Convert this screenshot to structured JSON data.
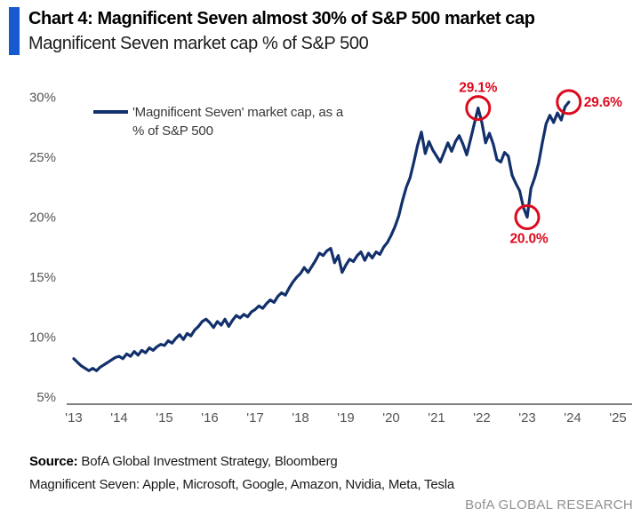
{
  "header": {
    "title": "Chart 4: Magnificent Seven almost 30% of S&P 500 market cap",
    "subtitle": "Magnificent Seven market cap % of S&P 500",
    "accent_bar_color": "#1759cf"
  },
  "legend": {
    "label": "'Magnificent Seven' market cap, as a\n% of S&P 500",
    "line_color": "#12306b"
  },
  "chart_data": {
    "type": "line",
    "title": "Magnificent Seven market cap % of S&P 500",
    "xlabel": "",
    "ylabel": "",
    "grid": false,
    "legend_position": "top-left",
    "x_start_year": 2013,
    "frequency": "monthly",
    "x_range": [
      2013,
      2025
    ],
    "y_range": [
      5,
      30
    ],
    "line_color": "#12306b",
    "annotation_color": "#dc0a1e",
    "y_ticks": [
      {
        "label": "30%",
        "value": 30
      },
      {
        "label": "25%",
        "value": 25
      },
      {
        "label": "20%",
        "value": 20
      },
      {
        "label": "15%",
        "value": 15
      },
      {
        "label": "10%",
        "value": 10
      },
      {
        "label": "5%",
        "value": 5
      }
    ],
    "x_ticks": [
      {
        "label": "'13",
        "year": 2013
      },
      {
        "label": "'14",
        "year": 2014
      },
      {
        "label": "'15",
        "year": 2015
      },
      {
        "label": "'16",
        "year": 2016
      },
      {
        "label": "'17",
        "year": 2017
      },
      {
        "label": "'18",
        "year": 2018
      },
      {
        "label": "'19",
        "year": 2019
      },
      {
        "label": "'20",
        "year": 2020
      },
      {
        "label": "'21",
        "year": 2021
      },
      {
        "label": "'22",
        "year": 2022
      },
      {
        "label": "'23",
        "year": 2023
      },
      {
        "label": "'24",
        "year": 2024
      },
      {
        "label": "'25",
        "year": 2025
      }
    ],
    "series": [
      {
        "name": "'Magnificent Seven' market cap, as a % of S&P 500",
        "color": "#12306b",
        "values": [
          8.2,
          7.9,
          7.6,
          7.4,
          7.2,
          7.4,
          7.2,
          7.5,
          7.7,
          7.9,
          8.1,
          8.3,
          8.4,
          8.2,
          8.6,
          8.4,
          8.8,
          8.5,
          8.9,
          8.7,
          9.1,
          8.9,
          9.2,
          9.4,
          9.3,
          9.7,
          9.5,
          9.9,
          10.2,
          9.8,
          10.3,
          10.1,
          10.6,
          10.9,
          11.3,
          11.5,
          11.2,
          10.8,
          11.3,
          11.0,
          11.5,
          10.9,
          11.4,
          11.8,
          11.6,
          11.9,
          11.7,
          12.1,
          12.3,
          12.6,
          12.4,
          12.8,
          13.1,
          12.9,
          13.4,
          13.7,
          13.5,
          14.1,
          14.6,
          15.0,
          15.3,
          15.8,
          15.4,
          15.9,
          16.4,
          17.0,
          16.8,
          17.2,
          17.4,
          16.2,
          16.8,
          15.4,
          16.0,
          16.5,
          16.3,
          16.8,
          17.1,
          16.4,
          17.0,
          16.6,
          17.1,
          16.9,
          17.5,
          17.9,
          18.5,
          19.2,
          20.1,
          21.4,
          22.5,
          23.3,
          24.6,
          26.0,
          27.1,
          25.3,
          26.3,
          25.6,
          25.1,
          24.6,
          25.4,
          26.2,
          25.5,
          26.3,
          26.8,
          26.1,
          25.2,
          26.5,
          27.8,
          29.1,
          27.9,
          26.2,
          27.0,
          26.1,
          24.8,
          24.6,
          25.4,
          25.1,
          23.5,
          22.8,
          22.2,
          20.8,
          20.0,
          22.4,
          23.3,
          24.5,
          26.2,
          27.8,
          28.5,
          27.9,
          28.7,
          28.1,
          29.2,
          29.6
        ]
      }
    ],
    "annotations": [
      {
        "label": "29.1%",
        "x": 2021.917,
        "y": 29.1,
        "placement": "above"
      },
      {
        "label": "20.0%",
        "x": 2023.0,
        "y": 20.0,
        "placement": "below"
      },
      {
        "label": "29.6%",
        "x": 2023.917,
        "y": 29.6,
        "placement": "right"
      }
    ]
  },
  "footer": {
    "source_label": "Source:",
    "source_text": " BofA Global Investment Strategy, Bloomberg",
    "note_text": "Magnificent Seven: Apple, Microsoft, Google, Amazon, Nvidia, Meta, Tesla",
    "brand_text": "BofA GLOBAL RESEARCH"
  }
}
